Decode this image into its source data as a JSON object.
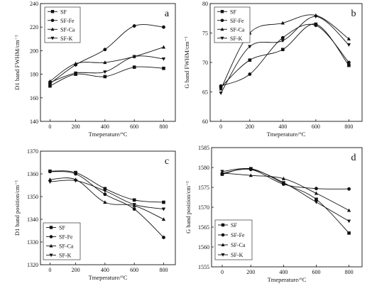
{
  "chart_data": [
    {
      "type": "line",
      "panel_label": "a",
      "xlabel": "Tmeperature/°C",
      "ylabel": "D1 band FWHM/cm⁻¹",
      "x": [
        25,
        200,
        400,
        600,
        800
      ],
      "xticks": [
        "0",
        "200",
        "400",
        "600",
        "800"
      ],
      "xlim": [
        -40,
        880
      ],
      "ylim": [
        140,
        240
      ],
      "yticks": [
        140,
        160,
        180,
        200,
        220,
        240
      ],
      "legend_position": "top-left",
      "series": [
        {
          "name": "SF",
          "marker": "square",
          "values": [
            170,
            180,
            178,
            186,
            185
          ]
        },
        {
          "name": "SF-Fe",
          "marker": "circle",
          "values": [
            172,
            188,
            201,
            221,
            220
          ]
        },
        {
          "name": "SF-Ca",
          "marker": "triangle-up",
          "values": [
            174,
            189,
            190,
            195,
            203
          ]
        },
        {
          "name": "SF-K",
          "marker": "triangle-down",
          "values": [
            173,
            181,
            182,
            195,
            193
          ]
        }
      ]
    },
    {
      "type": "line",
      "panel_label": "b",
      "xlabel": "Tmeperature/°C",
      "ylabel": "G band FWHM/cm⁻¹",
      "x": [
        25,
        200,
        400,
        600,
        800
      ],
      "xticks": [
        "0",
        "200",
        "400",
        "600",
        "800"
      ],
      "xlim": [
        -40,
        880
      ],
      "ylim": [
        60,
        80
      ],
      "yticks": [
        60,
        65,
        70,
        75,
        80
      ],
      "legend_position": "top-left",
      "series": [
        {
          "name": "SF",
          "marker": "square",
          "values": [
            65.8,
            70.4,
            72.2,
            76.5,
            69.5
          ]
        },
        {
          "name": "SF-Fe",
          "marker": "circle",
          "values": [
            66.0,
            68.0,
            74.2,
            76.3,
            70.0
          ]
        },
        {
          "name": "SF-Ca",
          "marker": "triangle-up",
          "values": [
            65.5,
            75.0,
            76.7,
            78.0,
            74.0
          ]
        },
        {
          "name": "SF-K",
          "marker": "triangle-down",
          "values": [
            64.8,
            72.7,
            73.7,
            77.8,
            73.0
          ]
        }
      ]
    },
    {
      "type": "line",
      "panel_label": "c",
      "xlabel": "Tmeperature/°C",
      "ylabel": "D1 band position/cm⁻¹",
      "x": [
        25,
        200,
        400,
        600,
        800
      ],
      "xticks": [
        "0",
        "200",
        "400",
        "600",
        "800"
      ],
      "xlim": [
        -40,
        880
      ],
      "ylim": [
        1320,
        1370
      ],
      "yticks": [
        1320,
        1330,
        1340,
        1350,
        1360,
        1370
      ],
      "legend_position": "bottom-left",
      "series": [
        {
          "name": "SF",
          "marker": "square",
          "values": [
            1361.2,
            1360.6,
            1353.5,
            1348.5,
            1347.5
          ]
        },
        {
          "name": "SF-Fe",
          "marker": "circle",
          "values": [
            1361.0,
            1360.0,
            1351.0,
            1344.5,
            1332.0
          ]
        },
        {
          "name": "SF-Ca",
          "marker": "triangle-up",
          "values": [
            1357.5,
            1357.5,
            1347.5,
            1346.0,
            1340.0
          ]
        },
        {
          "name": "SF-K",
          "marker": "triangle-down",
          "values": [
            1356.5,
            1357.0,
            1352.5,
            1346.5,
            1344.5
          ]
        }
      ]
    },
    {
      "type": "line",
      "panel_label": "d",
      "xlabel": "Tmeperature/°C",
      "ylabel": "G band position/cm⁻¹",
      "x": [
        25,
        200,
        400,
        600,
        800
      ],
      "xticks": [
        "0",
        "200",
        "400",
        "600",
        "800"
      ],
      "xlim": [
        -40,
        880
      ],
      "ylim": [
        1555,
        1585
      ],
      "yticks": [
        1555,
        1560,
        1565,
        1570,
        1575,
        1580,
        1585
      ],
      "legend_position": "bottom-left",
      "series": [
        {
          "name": "SF",
          "marker": "square",
          "values": [
            1578.3,
            1579.7,
            1576.0,
            1572.0,
            1563.5
          ]
        },
        {
          "name": "SF-Fe",
          "marker": "circle",
          "values": [
            1578.5,
            1579.5,
            1575.8,
            1574.7,
            1574.6
          ]
        },
        {
          "name": "SF-Ca",
          "marker": "triangle-up",
          "values": [
            1578.6,
            1578.0,
            1577.2,
            1573.5,
            1569.2
          ]
        },
        {
          "name": "SF-K",
          "marker": "triangle-down",
          "values": [
            1579.0,
            1579.6,
            1576.2,
            1571.3,
            1566.5
          ]
        }
      ]
    }
  ]
}
